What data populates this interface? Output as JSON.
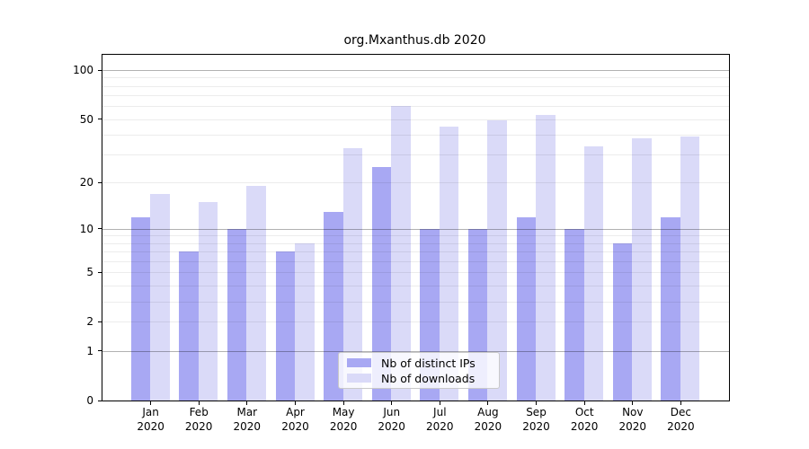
{
  "title": "org.Mxanthus.db 2020",
  "chart_data": {
    "type": "bar",
    "title": "org.Mxanthus.db 2020",
    "categories": [
      "Jan 2020",
      "Feb 2020",
      "Mar 2020",
      "Apr 2020",
      "May 2020",
      "Jun 2020",
      "Jul 2020",
      "Aug 2020",
      "Sep 2020",
      "Oct 2020",
      "Nov 2020",
      "Dec 2020"
    ],
    "series": [
      {
        "name": "Nb of distinct IPs",
        "color": "#a8a8f3",
        "values": [
          12,
          7,
          10,
          7,
          13,
          25,
          10,
          10,
          12,
          10,
          8,
          12
        ]
      },
      {
        "name": "Nb of downloads",
        "color": "#dadaf8",
        "values": [
          17,
          15,
          19,
          8,
          33,
          60,
          45,
          49,
          53,
          34,
          38,
          39
        ]
      }
    ],
    "xlabel": "",
    "ylabel": "",
    "yscale": "log1p",
    "ylim": [
      0,
      124
    ],
    "ytick_values": [
      100,
      50,
      20,
      10,
      5,
      2,
      1,
      0
    ],
    "ytick_labels": [
      "100",
      "50",
      "20",
      "10",
      "5",
      "2",
      "1",
      "0"
    ],
    "major_grid_values": [
      1,
      10,
      100
    ],
    "minor_grid_values": [
      2,
      3,
      4,
      5,
      6,
      7,
      8,
      9,
      20,
      30,
      40,
      50,
      60,
      70,
      80,
      90
    ],
    "grid": "on",
    "legend_position": "lower center"
  },
  "legend": {
    "items": [
      {
        "label": "Nb of distinct IPs",
        "color": "#a8a8f3"
      },
      {
        "label": "Nb of downloads",
        "color": "#dadaf8"
      }
    ]
  },
  "colors": {
    "background": "#ffffff",
    "axis": "#000000",
    "text": "#000000",
    "major_grid": "rgba(0,0,0,0.30)",
    "minor_grid": "rgba(0,0,0,0.075)",
    "legend_border": "#c9c9c9",
    "legend_background": "rgba(255,255,255,0.8)"
  }
}
